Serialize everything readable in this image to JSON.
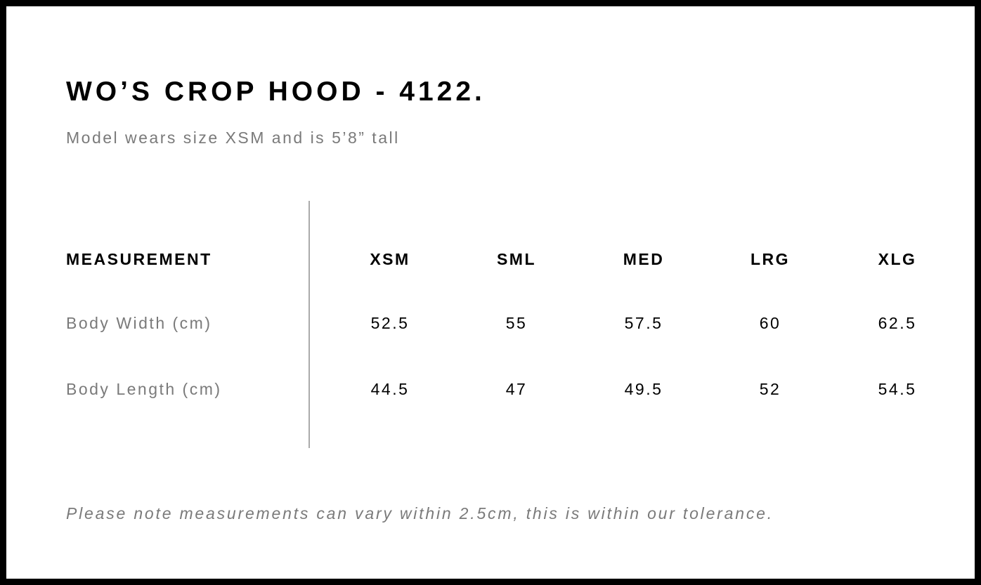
{
  "title": "WO’S CROP HOOD - 4122.",
  "subtitle": "Model wears size XSM and is 5’8” tall",
  "table": {
    "header": "MEASUREMENT",
    "sizes": [
      "XSM",
      "SML",
      "MED",
      "LRG",
      "XLG"
    ],
    "rows": [
      {
        "label": "Body Width (cm)",
        "values": [
          "52.5",
          "55",
          "57.5",
          "60",
          "62.5"
        ]
      },
      {
        "label": "Body Length (cm)",
        "values": [
          "44.5",
          "47",
          "49.5",
          "52",
          "54.5"
        ]
      }
    ]
  },
  "note": "Please note measurements can vary within 2.5cm, this is within our tolerance."
}
